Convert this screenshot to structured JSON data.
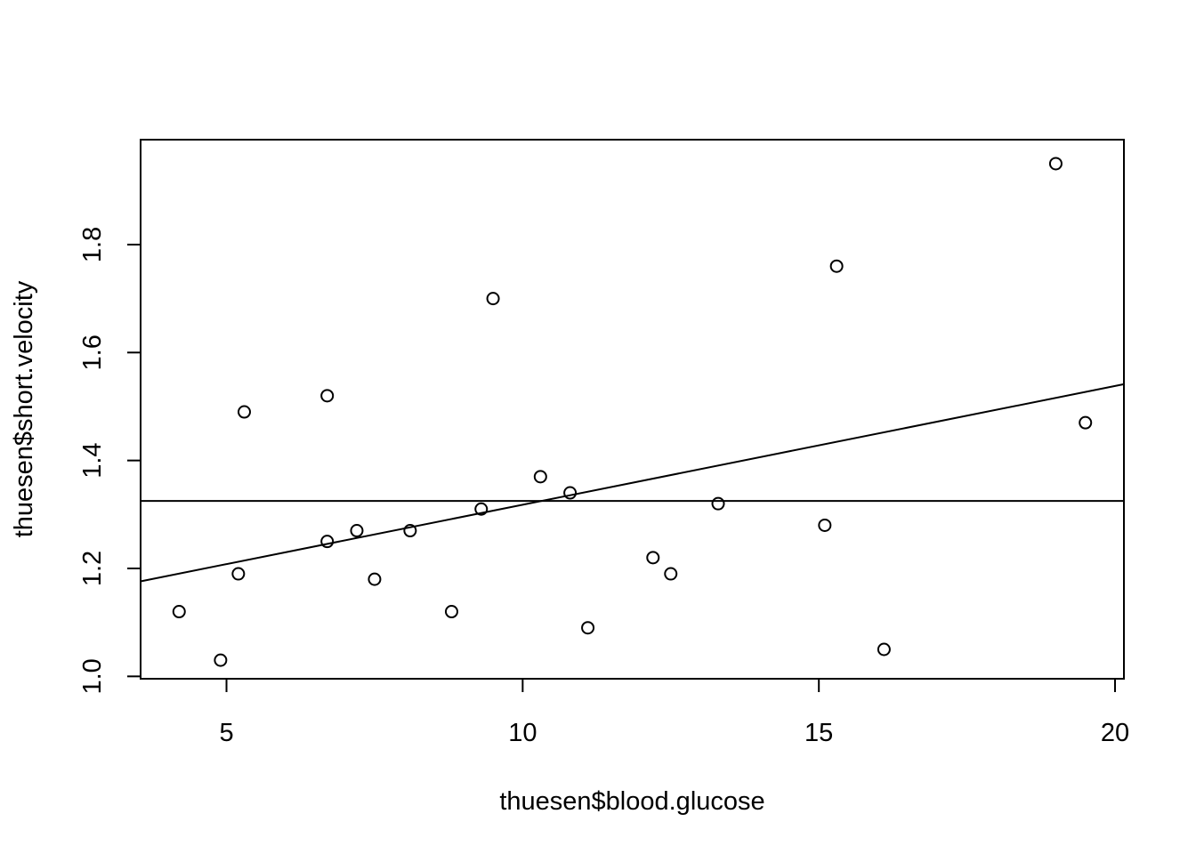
{
  "chart_data": {
    "type": "scatter",
    "title": "",
    "xlabel": "thuesen$blood.glucose",
    "ylabel": "thuesen$short.velocity",
    "xlim": [
      3.55,
      20.15
    ],
    "ylim": [
      0.9956,
      1.9944
    ],
    "x_ticks": [
      5,
      10,
      15,
      20
    ],
    "y_ticks": [
      1.0,
      1.2,
      1.4,
      1.6,
      1.8
    ],
    "x_tick_labels": [
      "5",
      "10",
      "15",
      "20"
    ],
    "y_tick_labels": [
      "1.0",
      "1.2",
      "1.4",
      "1.6",
      "1.8"
    ],
    "grid": false,
    "legend": "none",
    "box": true,
    "point_style": "open-circle",
    "colors": {
      "foreground": "#000000",
      "background": "#ffffff"
    },
    "points": [
      {
        "x": 4.2,
        "y": 1.12
      },
      {
        "x": 4.9,
        "y": 1.03
      },
      {
        "x": 5.2,
        "y": 1.19
      },
      {
        "x": 5.3,
        "y": 1.49
      },
      {
        "x": 6.7,
        "y": 1.25
      },
      {
        "x": 6.7,
        "y": 1.52
      },
      {
        "x": 7.2,
        "y": 1.27
      },
      {
        "x": 7.5,
        "y": 1.18
      },
      {
        "x": 8.1,
        "y": 1.27
      },
      {
        "x": 8.8,
        "y": 1.12
      },
      {
        "x": 9.3,
        "y": 1.31
      },
      {
        "x": 9.5,
        "y": 1.7
      },
      {
        "x": 10.3,
        "y": 1.37
      },
      {
        "x": 10.8,
        "y": 1.34
      },
      {
        "x": 11.1,
        "y": 1.09
      },
      {
        "x": 12.2,
        "y": 1.22
      },
      {
        "x": 12.5,
        "y": 1.19
      },
      {
        "x": 13.3,
        "y": 1.32
      },
      {
        "x": 15.1,
        "y": 1.28
      },
      {
        "x": 15.3,
        "y": 1.76
      },
      {
        "x": 16.1,
        "y": 1.05
      },
      {
        "x": 19.0,
        "y": 1.95
      },
      {
        "x": 19.5,
        "y": 1.47
      }
    ],
    "lines": [
      {
        "kind": "regression",
        "intercept": 1.098,
        "slope": 0.022
      },
      {
        "kind": "horizontal",
        "y": 1.325
      }
    ]
  }
}
